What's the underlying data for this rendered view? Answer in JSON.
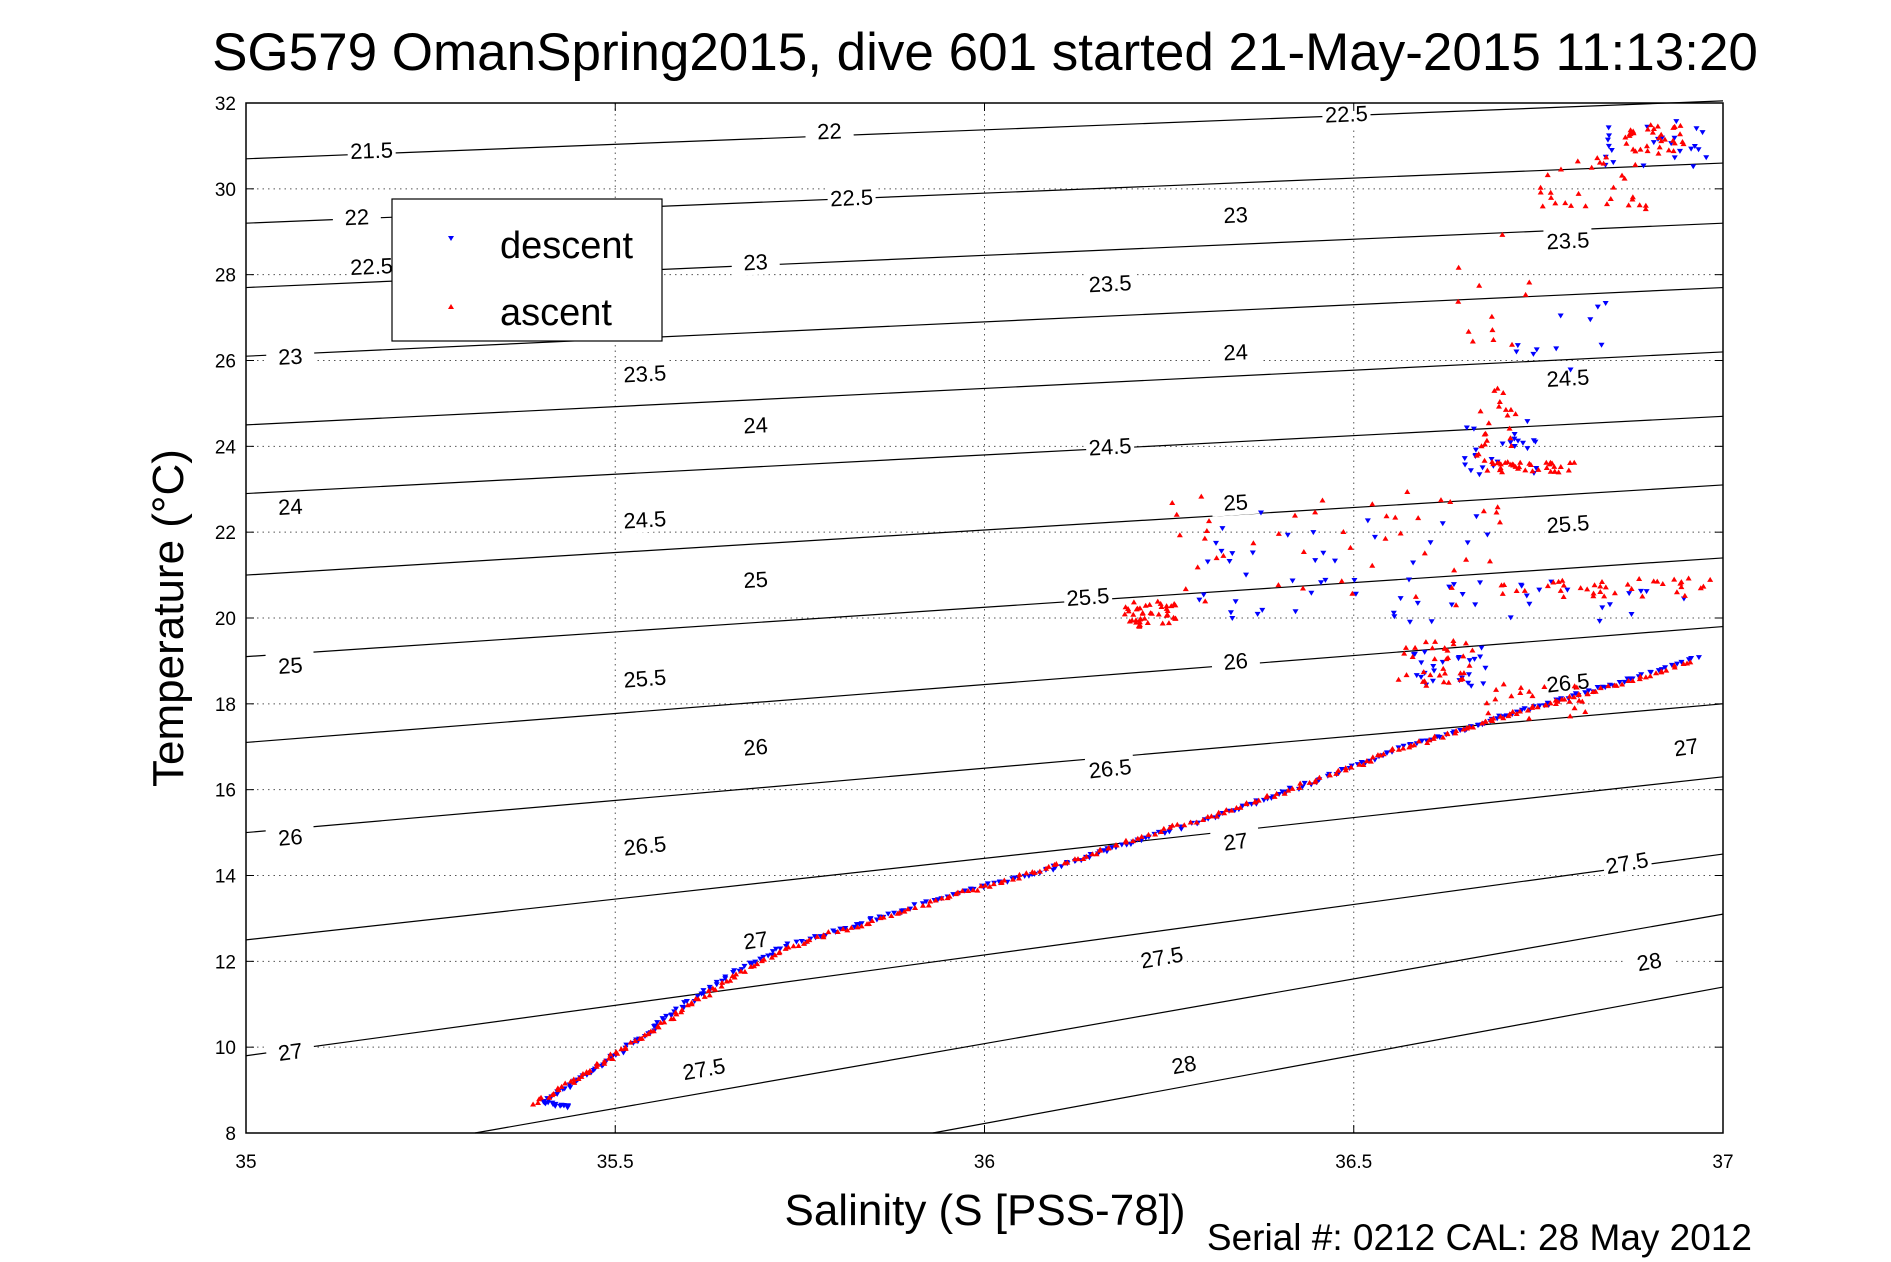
{
  "chart_data": {
    "type": "scatter",
    "title": "SG579 OmanSpring2015, dive 601 started 21-May-2015 11:13:20",
    "xlabel": "Salinity (S [PSS-78])",
    "ylabel": "Temperature (°C)",
    "footer": "Serial #: 0212  CAL: 28 May 2012",
    "xlim": [
      35,
      37
    ],
    "ylim": [
      8,
      32
    ],
    "x_ticks": [
      35,
      35.5,
      36,
      36.5,
      37
    ],
    "x_tick_labels": [
      "35",
      "35.5",
      "36",
      "36.5",
      "37"
    ],
    "y_ticks": [
      8,
      10,
      12,
      14,
      16,
      18,
      20,
      22,
      24,
      26,
      28,
      30,
      32
    ],
    "y_tick_labels": [
      "8",
      "10",
      "12",
      "14",
      "16",
      "18",
      "20",
      "22",
      "24",
      "26",
      "28",
      "30",
      "32"
    ],
    "grid": true,
    "legend_position": "top-left",
    "contours": [
      {
        "level": "21.5",
        "pts": [
          [
            35,
            30.7
          ],
          [
            37,
            32.05
          ]
        ],
        "labels": [
          [
            35.17,
            30.9
          ],
          [
            35.79,
            31.35
          ],
          [
            36.49,
            31.75
          ]
        ]
      },
      {
        "level": "22",
        "pts": [
          [
            35,
            29.2
          ],
          [
            37,
            30.6
          ]
        ],
        "labels": [
          [
            35.15,
            29.35
          ],
          [
            35.79,
            31.35
          ],
          [
            36.49,
            31.75
          ]
        ]
      },
      {
        "level": "22.5",
        "pts": [
          [
            35,
            27.7
          ],
          [
            37,
            29.2
          ]
        ],
        "labels": [
          [
            35.17,
            28.2
          ],
          [
            35.82,
            29.8
          ],
          [
            36.49,
            31.75
          ]
        ]
      },
      {
        "level": "23",
        "pts": [
          [
            35,
            26.1
          ],
          [
            37,
            27.7
          ]
        ],
        "labels": [
          [
            35.06,
            26.1
          ],
          [
            35.69,
            28.3
          ],
          [
            36.34,
            29.4
          ]
        ]
      },
      {
        "level": "23.5",
        "pts": [
          [
            35,
            24.5
          ],
          [
            37,
            26.2
          ]
        ],
        "labels": [
          [
            35.54,
            25.7
          ],
          [
            36.17,
            27.8
          ],
          [
            36.79,
            28.8
          ]
        ]
      },
      {
        "level": "24",
        "pts": [
          [
            35,
            22.9
          ],
          [
            37,
            24.7
          ]
        ],
        "labels": [
          [
            35.06,
            22.6
          ],
          [
            35.69,
            24.5
          ],
          [
            36.34,
            26.2
          ]
        ]
      },
      {
        "level": "24.5",
        "pts": [
          [
            35,
            21.0
          ],
          [
            37,
            23.1
          ]
        ],
        "labels": [
          [
            35.54,
            22.3
          ],
          [
            36.17,
            24.0
          ],
          [
            36.79,
            25.6
          ]
        ]
      },
      {
        "level": "25",
        "pts": [
          [
            35,
            19.1
          ],
          [
            37,
            21.4
          ]
        ],
        "labels": [
          [
            35.06,
            18.9
          ],
          [
            35.69,
            20.9
          ],
          [
            36.34,
            22.7
          ]
        ]
      },
      {
        "level": "25.5",
        "pts": [
          [
            35,
            17.1
          ],
          [
            37,
            19.8
          ]
        ],
        "labels": [
          [
            35.54,
            18.6
          ],
          [
            36.14,
            20.5
          ],
          [
            36.79,
            22.2
          ]
        ]
      },
      {
        "level": "26",
        "pts": [
          [
            35,
            15.0
          ],
          [
            37,
            18.0
          ]
        ],
        "labels": [
          [
            35.06,
            14.9
          ],
          [
            35.69,
            17.0
          ],
          [
            36.34,
            19.0
          ]
        ]
      },
      {
        "level": "26.5",
        "pts": [
          [
            35,
            12.5
          ],
          [
            37,
            16.3
          ]
        ],
        "labels": [
          [
            35.54,
            14.7
          ],
          [
            36.17,
            16.5
          ],
          [
            36.79,
            18.5
          ]
        ]
      },
      {
        "level": "27",
        "pts": [
          [
            35,
            9.8
          ],
          [
            37,
            14.5
          ]
        ],
        "labels": [
          [
            35.06,
            9.9
          ],
          [
            35.69,
            12.5
          ],
          [
            36.34,
            14.8
          ],
          [
            36.95,
            17.0
          ]
        ]
      },
      {
        "level": "27.5",
        "pts": [
          [
            35.31,
            8.0
          ],
          [
            37,
            13.1
          ]
        ],
        "labels": [
          [
            35.62,
            9.5
          ],
          [
            36.24,
            12.1
          ],
          [
            36.87,
            14.3
          ]
        ]
      },
      {
        "level": "28",
        "pts": [
          [
            35.93,
            8.0
          ],
          [
            37,
            11.4
          ]
        ],
        "labels": [
          [
            36.27,
            9.6
          ],
          [
            36.9,
            12.0
          ]
        ]
      }
    ],
    "series": [
      {
        "name": "descent",
        "color": "#0000ff",
        "marker": "triangle-down",
        "path": [
          [
            35.44,
            8.6
          ],
          [
            35.4,
            8.7
          ],
          [
            35.45,
            9.25
          ],
          [
            35.5,
            9.8
          ],
          [
            35.55,
            10.4
          ],
          [
            35.6,
            11.05
          ],
          [
            35.66,
            11.75
          ],
          [
            35.73,
            12.35
          ],
          [
            35.82,
            12.8
          ],
          [
            35.9,
            13.25
          ],
          [
            36.0,
            13.75
          ],
          [
            36.08,
            14.1
          ],
          [
            36.15,
            14.5
          ],
          [
            36.22,
            14.9
          ],
          [
            36.32,
            15.4
          ],
          [
            36.4,
            15.9
          ],
          [
            36.48,
            16.4
          ],
          [
            36.56,
            16.95
          ],
          [
            36.65,
            17.4
          ],
          [
            36.72,
            17.8
          ],
          [
            36.8,
            18.2
          ],
          [
            36.88,
            18.6
          ],
          [
            36.97,
            19.1
          ]
        ],
        "clusters": [
          {
            "x": [
              36.58,
              36.68
            ],
            "y": [
              18.4,
              19.3
            ],
            "n": 25
          },
          {
            "x": [
              36.25,
              36.95
            ],
            "y": [
              19.9,
              20.9
            ],
            "n": 40
          },
          {
            "x": [
              36.3,
              36.7
            ],
            "y": [
              20.8,
              22.5
            ],
            "n": 25
          },
          {
            "x": [
              36.65,
              36.75
            ],
            "y": [
              23.3,
              24.5
            ],
            "n": 25
          },
          {
            "x": [
              36.72,
              36.87
            ],
            "y": [
              24.5,
              27.8
            ],
            "n": 12
          },
          {
            "x": [
              36.84,
              36.98
            ],
            "y": [
              30.5,
              31.6
            ],
            "n": 25
          }
        ]
      },
      {
        "name": "ascent",
        "color": "#ff0000",
        "marker": "triangle-up",
        "path": [
          [
            35.39,
            8.7
          ],
          [
            35.45,
            9.3
          ],
          [
            35.5,
            9.85
          ],
          [
            35.56,
            10.5
          ],
          [
            35.62,
            11.2
          ],
          [
            35.68,
            11.85
          ],
          [
            35.76,
            12.5
          ],
          [
            35.85,
            12.95
          ],
          [
            35.95,
            13.5
          ],
          [
            36.03,
            13.9
          ],
          [
            36.12,
            14.35
          ],
          [
            36.2,
            14.85
          ],
          [
            36.3,
            15.35
          ],
          [
            36.38,
            15.8
          ],
          [
            36.47,
            16.35
          ],
          [
            36.55,
            16.9
          ],
          [
            36.63,
            17.3
          ],
          [
            36.7,
            17.7
          ],
          [
            36.78,
            18.1
          ],
          [
            36.88,
            18.55
          ],
          [
            36.96,
            19.0
          ]
        ],
        "clusters": [
          {
            "x": [
              36.19,
              36.26
            ],
            "y": [
              19.8,
              20.4
            ],
            "n": 45
          },
          {
            "x": [
              36.55,
              36.67
            ],
            "y": [
              18.3,
              19.5
            ],
            "n": 35
          },
          {
            "x": [
              36.67,
              36.82
            ],
            "y": [
              17.6,
              18.5
            ],
            "n": 25
          },
          {
            "x": [
              36.25,
              36.7
            ],
            "y": [
              20.3,
              23.0
            ],
            "n": 45
          },
          {
            "x": [
              36.7,
              36.99
            ],
            "y": [
              20.5,
              20.95
            ],
            "n": 40
          },
          {
            "x": [
              36.68,
              36.8
            ],
            "y": [
              23.4,
              23.65
            ],
            "n": 35
          },
          {
            "x": [
              36.66,
              36.72
            ],
            "y": [
              23.5,
              25.4
            ],
            "n": 25
          },
          {
            "x": [
              36.64,
              36.74
            ],
            "y": [
              26.2,
              29.6
            ],
            "n": 12
          },
          {
            "x": [
              36.75,
              36.9
            ],
            "y": [
              29.5,
              30.8
            ],
            "n": 30
          },
          {
            "x": [
              36.86,
              36.95
            ],
            "y": [
              30.8,
              31.5
            ],
            "n": 35
          }
        ]
      }
    ]
  }
}
